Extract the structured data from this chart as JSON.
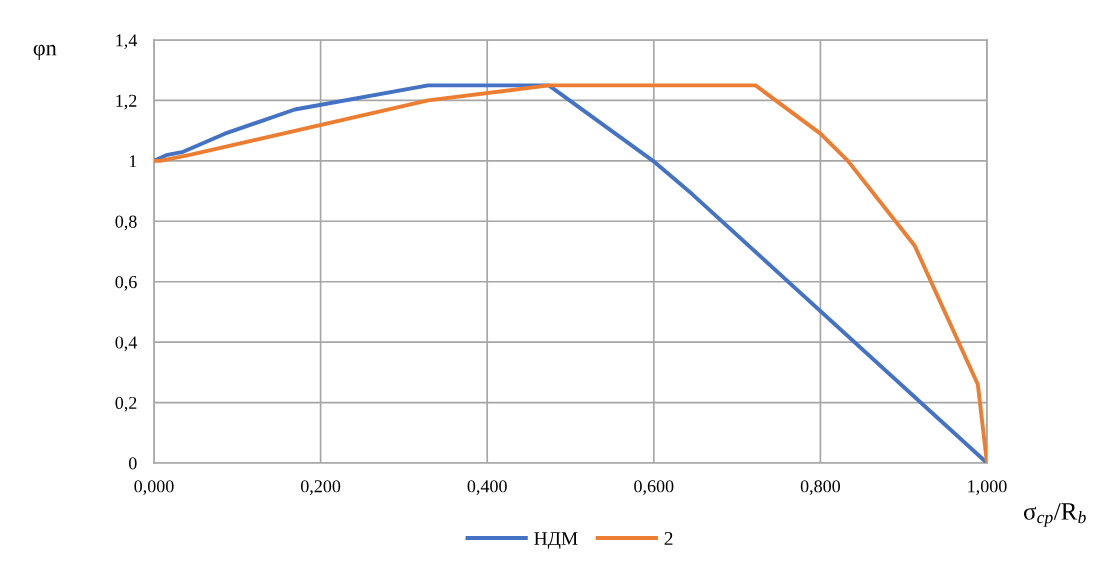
{
  "chart_data": {
    "type": "line",
    "ylabel": "φn",
    "xlabel": "σ$_{ср}$/R$_{b}$",
    "xlim": [
      0,
      1
    ],
    "xticks": [
      {
        "value": 0,
        "label": "0,000"
      },
      {
        "value": 0.2,
        "label": "0,200"
      },
      {
        "value": 0.4,
        "label": "0,400"
      },
      {
        "value": 0.6,
        "label": "0,600"
      },
      {
        "value": 0.8,
        "label": "0,800"
      },
      {
        "value": 1,
        "label": "1,000"
      }
    ],
    "ylim": [
      0,
      1.4
    ],
    "yticks": [
      0,
      {
        "value": 0.2,
        "label": "0,2"
      },
      {
        "value": 0.4,
        "label": "0,4"
      },
      {
        "value": 0.6,
        "label": "0,6"
      },
      {
        "value": 0.8,
        "label": "0,8"
      },
      1,
      {
        "value": 1.2,
        "label": "1,2"
      },
      {
        "value": 1.4,
        "label": "1,4"
      }
    ],
    "grid": true,
    "legend": "bottom",
    "marker": "none",
    "line_style": "solid",
    "series": [
      {
        "name": "НДМ",
        "color": "#4472c4",
        "x": [
          0,
          0.016,
          0.035,
          0.085,
          0.169,
          0.329,
          0.474,
          0.599,
          0.646,
          1.0
        ],
        "values": [
          1,
          1.02,
          1.03,
          1.09,
          1.17,
          1.25,
          1.25,
          1.0,
          0.89,
          0
        ]
      },
      {
        "name": "2",
        "color": "#ed7d31",
        "x": [
          0,
          0.007,
          0.043,
          0.329,
          0.474,
          0.722,
          0.8,
          0.833,
          0.913,
          0.989,
          1.0
        ],
        "values": [
          1,
          1.0,
          1.02,
          1.2,
          1.25,
          1.25,
          1.09,
          1.0,
          0.72,
          0.26,
          0
        ]
      }
    ]
  }
}
